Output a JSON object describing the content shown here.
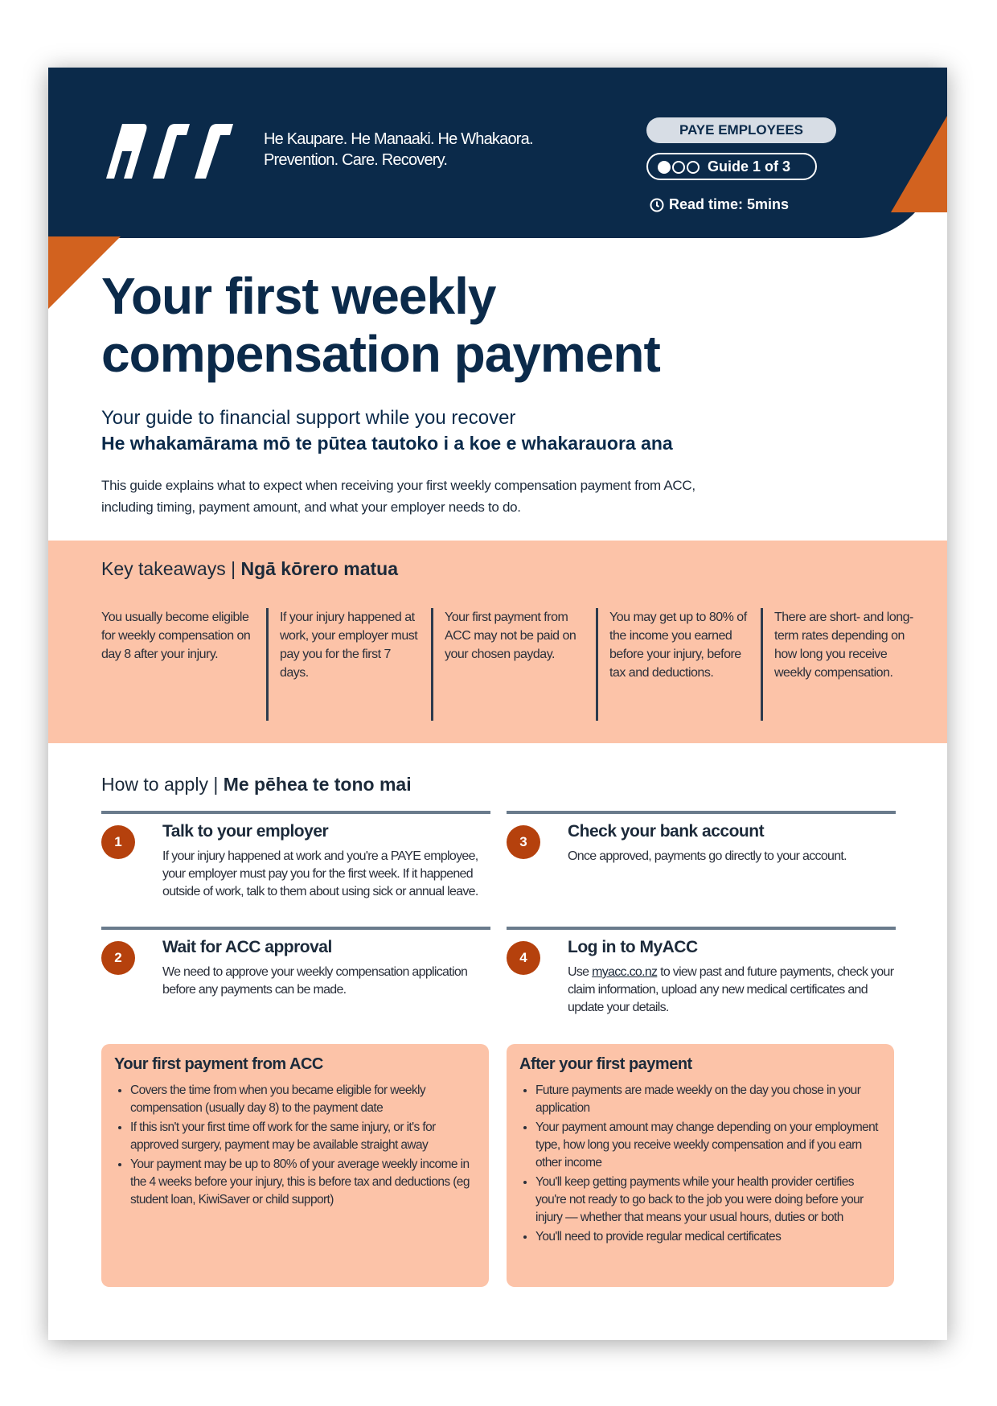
{
  "header": {
    "logo_text": "ACC",
    "tagline_line1": "He Kaupare. He Manaaki. He Whakaora.",
    "tagline_line2": "Prevention. Care. Recovery.",
    "audience_badge": "PAYE EMPLOYEES",
    "guide_label": "Guide 1 of 3",
    "guide_progress": {
      "current": 1,
      "total": 3
    },
    "read_time": "Read time: 5mins",
    "colors": {
      "navy": "#0b2a4a",
      "orange": "#d2621f",
      "peach": "#fcc3a8"
    }
  },
  "title_line1": "Your first weekly",
  "title_line2": "compensation payment",
  "subtitle_en": "Your guide to financial support while you recover",
  "subtitle_mi": "He whakamārama mō te pūtea tautoko i a koe e whakarauora ana",
  "intro": "This guide explains what to expect when receiving your first weekly compensation payment from ACC, including timing, payment amount, and what your employer needs to do.",
  "takeaways": {
    "title_en": "Key takeaways | ",
    "title_mi": "Ngā kōrero matua",
    "items": [
      "You usually become eligible for weekly compensation on day 8 after your injury.",
      "If your injury happened at work, your employer must pay you for the first 7 days.",
      "Your first payment from ACC may not be paid on your chosen payday.",
      "You may get up to 80% of the income you earned before your injury, before tax and deductions.",
      "There are short- and long-term rates depending on how long you receive weekly compensation."
    ]
  },
  "how_to_apply": {
    "title_en": "How to apply  | ",
    "title_mi": "Me pēhea te tono mai",
    "steps": [
      {
        "num": "1",
        "title": "Talk to your employer",
        "body": "If your injury happened at work and you're a PAYE employee, your employer must pay you for the first week. If it happened outside of work, talk to them about using sick or annual leave."
      },
      {
        "num": "2",
        "title": "Wait for ACC approval",
        "body": "We need to approve your weekly compensation application before any payments can be made."
      },
      {
        "num": "3",
        "title": "Check your bank account",
        "body": "Once approved, payments go directly to your account."
      },
      {
        "num": "4",
        "title": "Log in to MyACC",
        "body_pre": "Use ",
        "link": "myacc.co.nz",
        "body_post": " to view past and future payments, check your claim information, upload any new medical certificates and update your details."
      }
    ]
  },
  "first_payment": {
    "title": "Your first payment from ACC",
    "items": [
      "Covers the time from when you became eligible for weekly compensation (usually day 8) to the payment date",
      "If this isn't your first time off work for the same injury, or it's for approved surgery, payment may be available straight away",
      "Your payment may be up to 80% of your average weekly income in the 4 weeks before your injury, this is before tax and deductions (eg student loan, KiwiSaver or child support)"
    ]
  },
  "after_payment": {
    "title": "After your first payment",
    "items": [
      "Future payments are made weekly on the day you chose in your application",
      "Your payment amount may change depending on your employment type, how long you receive weekly compensation and if you earn other income",
      "You'll keep getting payments while your health provider certifies you're not ready to go back to the job you were doing before your injury — whether that means your usual hours, duties or both",
      "You'll need to provide regular medical certificates"
    ]
  }
}
